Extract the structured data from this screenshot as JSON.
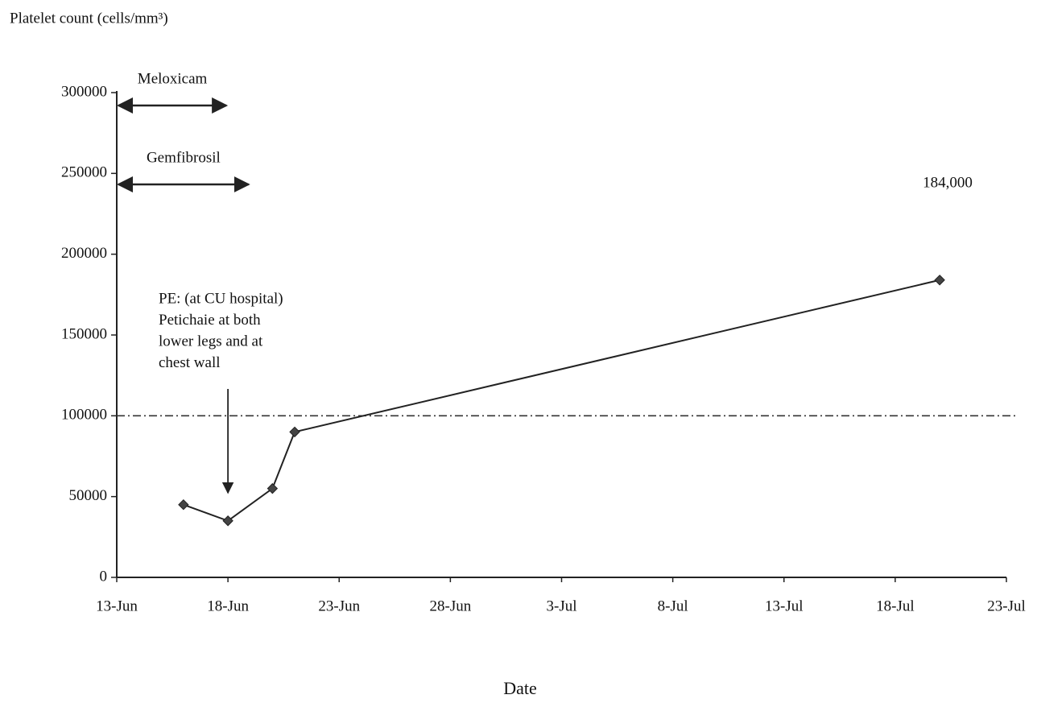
{
  "chart_data": {
    "type": "line",
    "y_label": "Platelet count (cells/mm³)",
    "x_label": "Date",
    "x": [
      "16-Jun",
      "18-Jun",
      "20-Jun",
      "21-Jun",
      "20-Jul"
    ],
    "values": [
      45000,
      35000,
      55000,
      90000,
      184000
    ],
    "value_labels": [
      null,
      null,
      null,
      null,
      "184,000"
    ],
    "color": "#222222",
    "xlim": [
      "13-Jun",
      "23-Jul"
    ],
    "xticks": [
      "13-Jun",
      "18-Jun",
      "23-Jun",
      "28-Jun",
      "3-Jul",
      "8-Jul",
      "13-Jul",
      "18-Jul",
      "23-Jul"
    ],
    "ylim": [
      0,
      300000
    ],
    "yticks": [
      0,
      50000,
      100000,
      150000,
      200000,
      250000,
      300000
    ],
    "grid": false,
    "reference_line": 100000,
    "ranges": [
      {
        "label": "Meloxicam",
        "start": "13-Jun",
        "end": "18-Jun"
      },
      {
        "label": "Gemfibrosil",
        "start": "13-Jun",
        "end": "19-Jun"
      }
    ],
    "annotation": {
      "lines": [
        "PE: (at CU hospital)",
        "Petichaie at both",
        "lower legs and at",
        "chest wall"
      ],
      "x": "18-Jun"
    }
  }
}
